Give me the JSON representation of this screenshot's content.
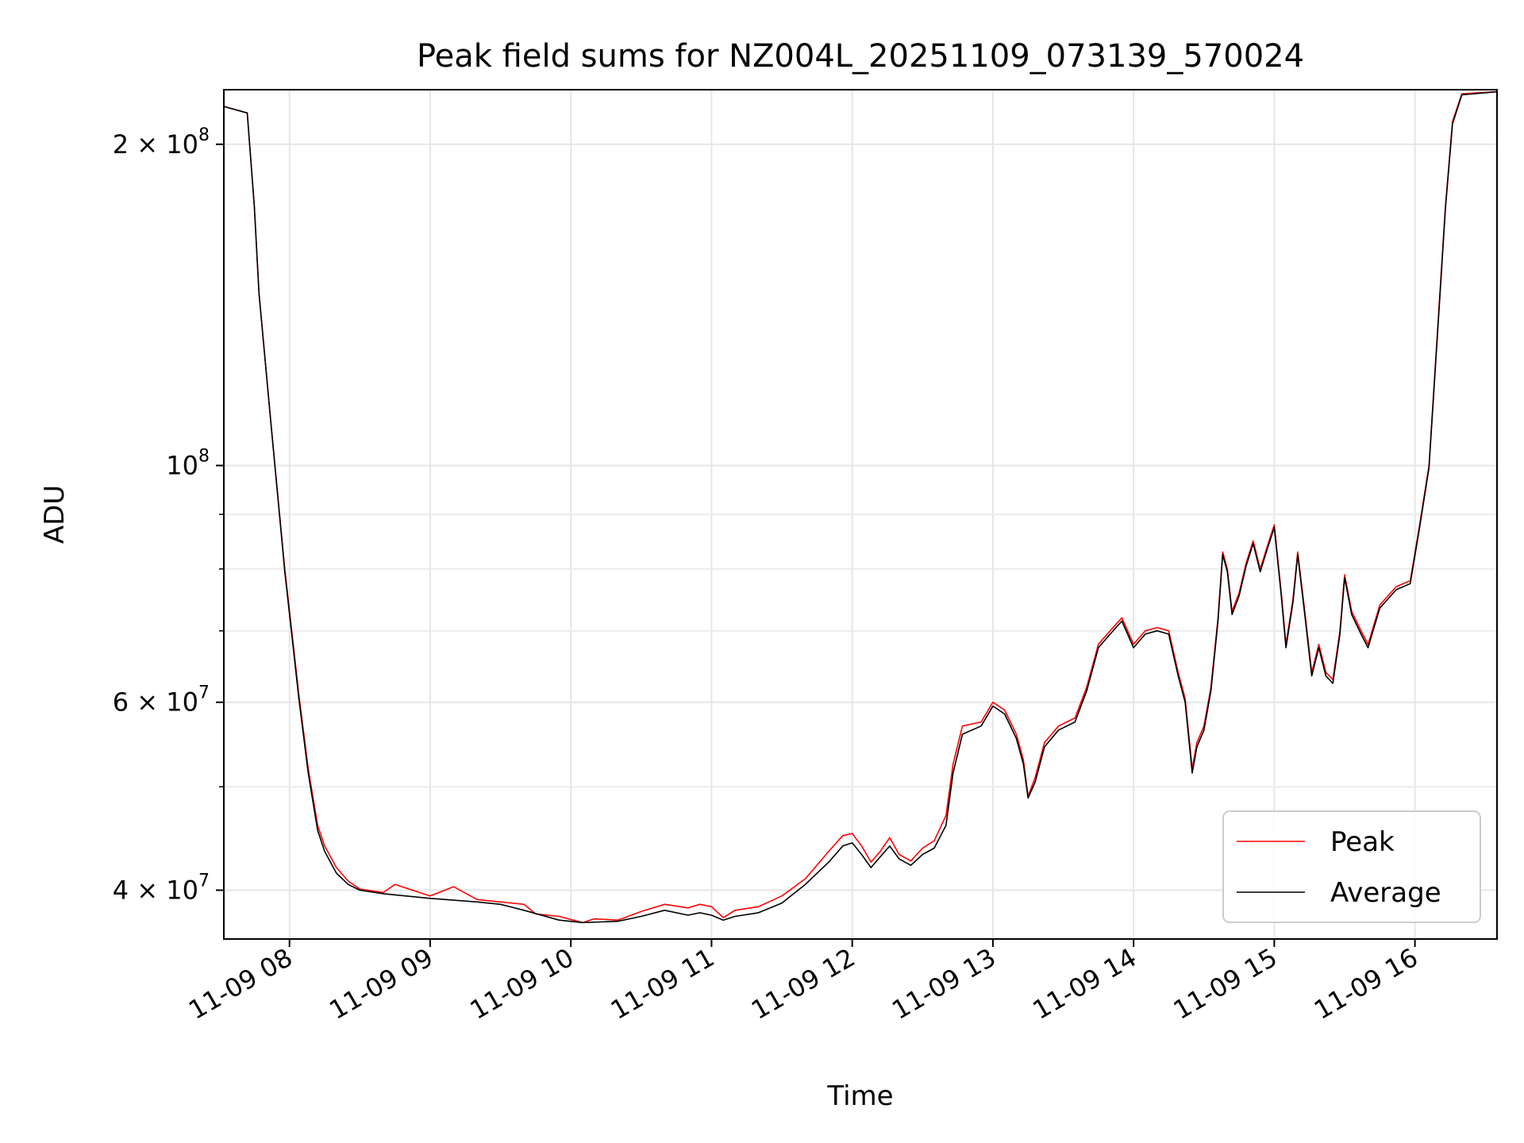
{
  "chart_data": {
    "type": "line",
    "title": "Peak field sums for NZ004L_20251109_073139_570024",
    "xlabel": "Time",
    "ylabel": "ADU",
    "yscale": "log",
    "grid": true,
    "legend_position": "lower right",
    "xlim": [
      "2025-11-09 07:32",
      "2025-11-09 16:35"
    ],
    "ylim": [
      36000000,
      225000000
    ],
    "x_ticks": [
      {
        "value": "2025-11-09 08:00",
        "label": "11-09 08"
      },
      {
        "value": "2025-11-09 09:00",
        "label": "11-09 09"
      },
      {
        "value": "2025-11-09 10:00",
        "label": "11-09 10"
      },
      {
        "value": "2025-11-09 11:00",
        "label": "11-09 11"
      },
      {
        "value": "2025-11-09 12:00",
        "label": "11-09 12"
      },
      {
        "value": "2025-11-09 13:00",
        "label": "11-09 13"
      },
      {
        "value": "2025-11-09 14:00",
        "label": "11-09 14"
      },
      {
        "value": "2025-11-09 15:00",
        "label": "11-09 15"
      },
      {
        "value": "2025-11-09 16:00",
        "label": "11-09 16"
      }
    ],
    "y_ticks": [
      {
        "value": 40000000,
        "base": "4 × 10",
        "exp": "7"
      },
      {
        "value": 60000000,
        "base": "6 × 10",
        "exp": "7"
      },
      {
        "value": 100000000,
        "base": "10",
        "exp": "8"
      },
      {
        "value": 200000000,
        "base": "2 × 10",
        "exp": "8"
      }
    ],
    "y_minor_ticks": [
      50000000,
      70000000,
      80000000,
      90000000
    ],
    "series": [
      {
        "name": "Peak",
        "color": "#ff0000",
        "points": [
          [
            "2025-11-09 07:32",
            217000000
          ],
          [
            "2025-11-09 07:42",
            214000000
          ],
          [
            "2025-11-09 07:45",
            175000000
          ],
          [
            "2025-11-09 07:47",
            145000000
          ],
          [
            "2025-11-09 07:52",
            110000000
          ],
          [
            "2025-11-09 07:58",
            80000000
          ],
          [
            "2025-11-09 08:04",
            61000000
          ],
          [
            "2025-11-09 08:08",
            52000000
          ],
          [
            "2025-11-09 08:12",
            46000000
          ],
          [
            "2025-11-09 08:15",
            44000000
          ],
          [
            "2025-11-09 08:20",
            42000000
          ],
          [
            "2025-11-09 08:25",
            40800000
          ],
          [
            "2025-11-09 08:30",
            40100000
          ],
          [
            "2025-11-09 08:40",
            39800000
          ],
          [
            "2025-11-09 08:45",
            40500000
          ],
          [
            "2025-11-09 09:00",
            39500000
          ],
          [
            "2025-11-09 09:10",
            40300000
          ],
          [
            "2025-11-09 09:20",
            39200000
          ],
          [
            "2025-11-09 09:30",
            39000000
          ],
          [
            "2025-11-09 09:40",
            38800000
          ],
          [
            "2025-11-09 09:45",
            38000000
          ],
          [
            "2025-11-09 09:55",
            37800000
          ],
          [
            "2025-11-09 10:05",
            37300000
          ],
          [
            "2025-11-09 10:10",
            37600000
          ],
          [
            "2025-11-09 10:20",
            37500000
          ],
          [
            "2025-11-09 10:30",
            38200000
          ],
          [
            "2025-11-09 10:40",
            38800000
          ],
          [
            "2025-11-09 10:50",
            38500000
          ],
          [
            "2025-11-09 10:55",
            38800000
          ],
          [
            "2025-11-09 11:00",
            38600000
          ],
          [
            "2025-11-09 11:05",
            37700000
          ],
          [
            "2025-11-09 11:10",
            38300000
          ],
          [
            "2025-11-09 11:20",
            38600000
          ],
          [
            "2025-11-09 11:30",
            39500000
          ],
          [
            "2025-11-09 11:40",
            41000000
          ],
          [
            "2025-11-09 11:50",
            43500000
          ],
          [
            "2025-11-09 11:56",
            45000000
          ],
          [
            "2025-11-09 12:00",
            45200000
          ],
          [
            "2025-11-09 12:04",
            44000000
          ],
          [
            "2025-11-09 12:08",
            42500000
          ],
          [
            "2025-11-09 12:12",
            43500000
          ],
          [
            "2025-11-09 12:16",
            44800000
          ],
          [
            "2025-11-09 12:20",
            43200000
          ],
          [
            "2025-11-09 12:25",
            42600000
          ],
          [
            "2025-11-09 12:30",
            43800000
          ],
          [
            "2025-11-09 12:35",
            44500000
          ],
          [
            "2025-11-09 12:40",
            47000000
          ],
          [
            "2025-11-09 12:43",
            52500000
          ],
          [
            "2025-11-09 12:47",
            57000000
          ],
          [
            "2025-11-09 12:55",
            57500000
          ],
          [
            "2025-11-09 13:00",
            60000000
          ],
          [
            "2025-11-09 13:05",
            59000000
          ],
          [
            "2025-11-09 13:10",
            56000000
          ],
          [
            "2025-11-09 13:13",
            53000000
          ],
          [
            "2025-11-09 13:15",
            49000000
          ],
          [
            "2025-11-09 13:18",
            51000000
          ],
          [
            "2025-11-09 13:22",
            55000000
          ],
          [
            "2025-11-09 13:28",
            57000000
          ],
          [
            "2025-11-09 13:35",
            58000000
          ],
          [
            "2025-11-09 13:40",
            62000000
          ],
          [
            "2025-11-09 13:45",
            68000000
          ],
          [
            "2025-11-09 13:50",
            70000000
          ],
          [
            "2025-11-09 13:55",
            72000000
          ],
          [
            "2025-11-09 14:00",
            68000000
          ],
          [
            "2025-11-09 14:05",
            70000000
          ],
          [
            "2025-11-09 14:10",
            70500000
          ],
          [
            "2025-11-09 14:15",
            70000000
          ],
          [
            "2025-11-09 14:19",
            64000000
          ],
          [
            "2025-11-09 14:22",
            60500000
          ],
          [
            "2025-11-09 14:25",
            52000000
          ],
          [
            "2025-11-09 14:27",
            55000000
          ],
          [
            "2025-11-09 14:30",
            57000000
          ],
          [
            "2025-11-09 14:33",
            62000000
          ],
          [
            "2025-11-09 14:36",
            72000000
          ],
          [
            "2025-11-09 14:38",
            83000000
          ],
          [
            "2025-11-09 14:40",
            80000000
          ],
          [
            "2025-11-09 14:42",
            73000000
          ],
          [
            "2025-11-09 14:45",
            76000000
          ],
          [
            "2025-11-09 14:48",
            81000000
          ],
          [
            "2025-11-09 14:51",
            85000000
          ],
          [
            "2025-11-09 14:54",
            80000000
          ],
          [
            "2025-11-09 14:57",
            84000000
          ],
          [
            "2025-11-09 15:00",
            88000000
          ],
          [
            "2025-11-09 15:03",
            76000000
          ],
          [
            "2025-11-09 15:05",
            68000000
          ],
          [
            "2025-11-09 15:08",
            75000000
          ],
          [
            "2025-11-09 15:10",
            83000000
          ],
          [
            "2025-11-09 15:13",
            73000000
          ],
          [
            "2025-11-09 15:16",
            64000000
          ],
          [
            "2025-11-09 15:19",
            68000000
          ],
          [
            "2025-11-09 15:22",
            64000000
          ],
          [
            "2025-11-09 15:25",
            63000000
          ],
          [
            "2025-11-09 15:28",
            70000000
          ],
          [
            "2025-11-09 15:30",
            79000000
          ],
          [
            "2025-11-09 15:33",
            73000000
          ],
          [
            "2025-11-09 15:37",
            70000000
          ],
          [
            "2025-11-09 15:40",
            68000000
          ],
          [
            "2025-11-09 15:45",
            74000000
          ],
          [
            "2025-11-09 15:52",
            77000000
          ],
          [
            "2025-11-09 15:58",
            78000000
          ],
          [
            "2025-11-09 16:02",
            88000000
          ],
          [
            "2025-11-09 16:06",
            100000000
          ],
          [
            "2025-11-09 16:10",
            138000000
          ],
          [
            "2025-11-09 16:13",
            175000000
          ],
          [
            "2025-11-09 16:16",
            210000000
          ],
          [
            "2025-11-09 16:20",
            223000000
          ],
          [
            "2025-11-09 16:35",
            224000000
          ]
        ]
      },
      {
        "name": "Average",
        "color": "#000000",
        "points": [
          [
            "2025-11-09 07:32",
            217000000
          ],
          [
            "2025-11-09 07:42",
            214000000
          ],
          [
            "2025-11-09 07:45",
            175000000
          ],
          [
            "2025-11-09 07:47",
            145000000
          ],
          [
            "2025-11-09 07:52",
            110000000
          ],
          [
            "2025-11-09 07:58",
            79500000
          ],
          [
            "2025-11-09 08:04",
            60500000
          ],
          [
            "2025-11-09 08:08",
            51500000
          ],
          [
            "2025-11-09 08:12",
            45500000
          ],
          [
            "2025-11-09 08:15",
            43500000
          ],
          [
            "2025-11-09 08:20",
            41500000
          ],
          [
            "2025-11-09 08:25",
            40500000
          ],
          [
            "2025-11-09 08:30",
            40000000
          ],
          [
            "2025-11-09 08:40",
            39700000
          ],
          [
            "2025-11-09 09:00",
            39300000
          ],
          [
            "2025-11-09 09:20",
            39000000
          ],
          [
            "2025-11-09 09:30",
            38800000
          ],
          [
            "2025-11-09 09:40",
            38300000
          ],
          [
            "2025-11-09 09:55",
            37500000
          ],
          [
            "2025-11-09 10:05",
            37300000
          ],
          [
            "2025-11-09 10:20",
            37400000
          ],
          [
            "2025-11-09 10:30",
            37800000
          ],
          [
            "2025-11-09 10:40",
            38300000
          ],
          [
            "2025-11-09 10:50",
            37900000
          ],
          [
            "2025-11-09 10:55",
            38100000
          ],
          [
            "2025-11-09 11:00",
            37900000
          ],
          [
            "2025-11-09 11:05",
            37500000
          ],
          [
            "2025-11-09 11:10",
            37800000
          ],
          [
            "2025-11-09 11:20",
            38100000
          ],
          [
            "2025-11-09 11:30",
            38900000
          ],
          [
            "2025-11-09 11:40",
            40500000
          ],
          [
            "2025-11-09 11:50",
            42500000
          ],
          [
            "2025-11-09 11:56",
            44000000
          ],
          [
            "2025-11-09 12:00",
            44300000
          ],
          [
            "2025-11-09 12:04",
            43200000
          ],
          [
            "2025-11-09 12:08",
            42000000
          ],
          [
            "2025-11-09 12:12",
            43000000
          ],
          [
            "2025-11-09 12:16",
            44000000
          ],
          [
            "2025-11-09 12:20",
            42800000
          ],
          [
            "2025-11-09 12:25",
            42200000
          ],
          [
            "2025-11-09 12:30",
            43200000
          ],
          [
            "2025-11-09 12:35",
            43800000
          ],
          [
            "2025-11-09 12:40",
            46000000
          ],
          [
            "2025-11-09 12:43",
            51500000
          ],
          [
            "2025-11-09 12:47",
            56000000
          ],
          [
            "2025-11-09 12:55",
            57000000
          ],
          [
            "2025-11-09 13:00",
            59500000
          ],
          [
            "2025-11-09 13:05",
            58500000
          ],
          [
            "2025-11-09 13:10",
            55500000
          ],
          [
            "2025-11-09 13:13",
            52500000
          ],
          [
            "2025-11-09 13:15",
            48800000
          ],
          [
            "2025-11-09 13:18",
            50500000
          ],
          [
            "2025-11-09 13:22",
            54500000
          ],
          [
            "2025-11-09 13:28",
            56500000
          ],
          [
            "2025-11-09 13:35",
            57500000
          ],
          [
            "2025-11-09 13:40",
            61500000
          ],
          [
            "2025-11-09 13:45",
            67500000
          ],
          [
            "2025-11-09 13:50",
            69500000
          ],
          [
            "2025-11-09 13:55",
            71500000
          ],
          [
            "2025-11-09 14:00",
            67500000
          ],
          [
            "2025-11-09 14:05",
            69500000
          ],
          [
            "2025-11-09 14:10",
            70000000
          ],
          [
            "2025-11-09 14:15",
            69500000
          ],
          [
            "2025-11-09 14:19",
            63500000
          ],
          [
            "2025-11-09 14:22",
            60000000
          ],
          [
            "2025-11-09 14:25",
            51500000
          ],
          [
            "2025-11-09 14:27",
            54500000
          ],
          [
            "2025-11-09 14:30",
            56500000
          ],
          [
            "2025-11-09 14:33",
            61500000
          ],
          [
            "2025-11-09 14:36",
            71500000
          ],
          [
            "2025-11-09 14:38",
            82500000
          ],
          [
            "2025-11-09 14:40",
            79500000
          ],
          [
            "2025-11-09 14:42",
            72500000
          ],
          [
            "2025-11-09 14:45",
            75500000
          ],
          [
            "2025-11-09 14:48",
            80500000
          ],
          [
            "2025-11-09 14:51",
            84500000
          ],
          [
            "2025-11-09 14:54",
            79500000
          ],
          [
            "2025-11-09 14:57",
            83500000
          ],
          [
            "2025-11-09 15:00",
            87500000
          ],
          [
            "2025-11-09 15:03",
            75500000
          ],
          [
            "2025-11-09 15:05",
            67500000
          ],
          [
            "2025-11-09 15:08",
            74500000
          ],
          [
            "2025-11-09 15:10",
            82500000
          ],
          [
            "2025-11-09 15:13",
            72500000
          ],
          [
            "2025-11-09 15:16",
            63500000
          ],
          [
            "2025-11-09 15:19",
            67500000
          ],
          [
            "2025-11-09 15:22",
            63500000
          ],
          [
            "2025-11-09 15:25",
            62500000
          ],
          [
            "2025-11-09 15:28",
            69500000
          ],
          [
            "2025-11-09 15:30",
            78500000
          ],
          [
            "2025-11-09 15:33",
            72500000
          ],
          [
            "2025-11-09 15:37",
            69500000
          ],
          [
            "2025-11-09 15:40",
            67500000
          ],
          [
            "2025-11-09 15:45",
            73500000
          ],
          [
            "2025-11-09 15:52",
            76500000
          ],
          [
            "2025-11-09 15:58",
            77500000
          ],
          [
            "2025-11-09 16:02",
            87500000
          ],
          [
            "2025-11-09 16:06",
            99500000
          ],
          [
            "2025-11-09 16:10",
            137000000
          ],
          [
            "2025-11-09 16:13",
            174000000
          ],
          [
            "2025-11-09 16:16",
            209000000
          ],
          [
            "2025-11-09 16:20",
            222500000
          ],
          [
            "2025-11-09 16:35",
            224000000
          ]
        ]
      }
    ]
  }
}
